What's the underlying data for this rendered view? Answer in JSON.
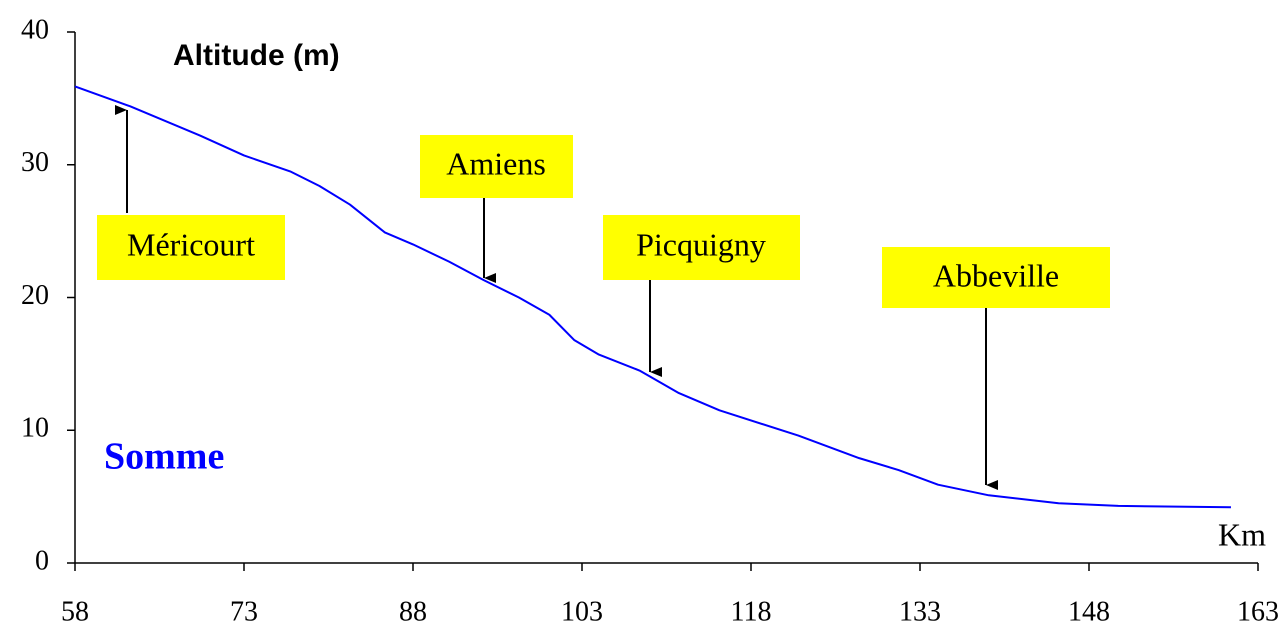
{
  "chart_data": {
    "type": "line",
    "y_label": "Altitude (m)",
    "x_label": "Km",
    "x": [
      58,
      62.9,
      69.1,
      73,
      77.1,
      79.7,
      82.4,
      85.5,
      88,
      91.2,
      94.3,
      97.4,
      100.1,
      102.3,
      104.5,
      108.1,
      111.6,
      115.2,
      122.2,
      127.6,
      131.1,
      134.6,
      139.1,
      145.3,
      150.6,
      160.6
    ],
    "series": [
      {
        "name": "Somme",
        "color": "#0000ff",
        "values": [
          35.9,
          34.4,
          32.2,
          30.7,
          29.5,
          28.4,
          27.0,
          24.9,
          24.0,
          22.7,
          21.3,
          20.0,
          18.7,
          16.8,
          15.7,
          14.5,
          12.8,
          11.5,
          9.6,
          7.9,
          7.0,
          5.9,
          5.1,
          4.5,
          4.3,
          4.2
        ]
      }
    ],
    "annotations": [
      "Méricourt",
      "Amiens",
      "Picquigny",
      "Abbeville"
    ],
    "xlim": [
      58,
      163
    ],
    "xticks": [
      58,
      73,
      88,
      103,
      118,
      133,
      148,
      163
    ],
    "ylim": [
      0,
      40
    ],
    "yticks": [
      0,
      10,
      20,
      30,
      40
    ],
    "grid": false
  }
}
